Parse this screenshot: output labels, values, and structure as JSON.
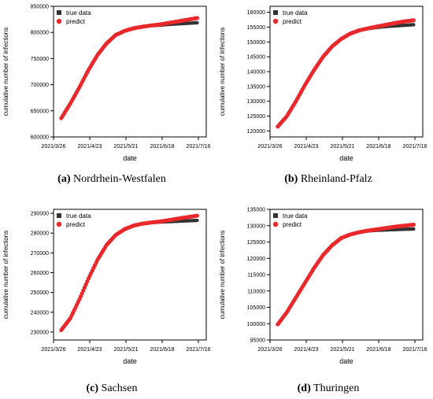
{
  "chart_data": [
    {
      "type": "scatter",
      "caption_letter": "(a)",
      "caption_name": "Nordrhein-Westfalen",
      "xlabel": "date",
      "ylabel": "cumulative number of infections",
      "x_tick_labels": [
        "2021/3/26",
        "2021/4/23",
        "2021/5/21",
        "2021/6/18",
        "2021/7/16"
      ],
      "y_tick_labels": [
        "600000",
        "650000",
        "700000",
        "750000",
        "800000",
        "850000"
      ],
      "ylim": [
        600000,
        850000
      ],
      "legend": [
        "true data",
        "predict"
      ],
      "legend_position": "top-left",
      "series": [
        {
          "name": "true data",
          "color": "#333333",
          "x": [
            "2021/4/1",
            "2021/4/8",
            "2021/4/15",
            "2021/4/22",
            "2021/4/29",
            "2021/5/6",
            "2021/5/13",
            "2021/5/20",
            "2021/5/27",
            "2021/6/3",
            "2021/6/10",
            "2021/6/17",
            "2021/6/24",
            "2021/7/1",
            "2021/7/8",
            "2021/7/15"
          ],
          "values": [
            636000,
            664000,
            695000,
            728000,
            757000,
            779000,
            795000,
            803000,
            808000,
            811000,
            813000,
            814000,
            815500,
            816500,
            817500,
            818500
          ]
        },
        {
          "name": "predict",
          "color": "#e8282b",
          "x": [
            "2021/4/1",
            "2021/4/8",
            "2021/4/15",
            "2021/4/22",
            "2021/4/29",
            "2021/5/6",
            "2021/5/13",
            "2021/5/20",
            "2021/5/27",
            "2021/6/3",
            "2021/6/10",
            "2021/6/17",
            "2021/6/24",
            "2021/7/1",
            "2021/7/8",
            "2021/7/15"
          ],
          "values": [
            636000,
            664000,
            695000,
            728000,
            757000,
            779000,
            795000,
            803000,
            808000,
            811000,
            813500,
            815500,
            818500,
            821500,
            824500,
            827500
          ]
        }
      ]
    },
    {
      "type": "scatter",
      "caption_letter": "(b)",
      "caption_name": "Rheinland-Pfalz",
      "xlabel": "date",
      "ylabel": "cumulative number of infections",
      "x_tick_labels": [
        "2021/3/26",
        "2021/4/23",
        "2021/5/21",
        "2021/6/18",
        "2021/7/16"
      ],
      "y_tick_labels": [
        "120000",
        "125000",
        "130000",
        "135000",
        "140000",
        "145000",
        "150000",
        "155000",
        "160000"
      ],
      "ylim": [
        118000,
        162000
      ],
      "legend": [
        "true data",
        "predict"
      ],
      "legend_position": "top-left",
      "series": [
        {
          "name": "true data",
          "color": "#333333",
          "x": [
            "2021/4/1",
            "2021/4/8",
            "2021/4/15",
            "2021/4/22",
            "2021/4/29",
            "2021/5/6",
            "2021/5/13",
            "2021/5/20",
            "2021/5/27",
            "2021/6/3",
            "2021/6/10",
            "2021/6/17",
            "2021/6/24",
            "2021/7/1",
            "2021/7/8",
            "2021/7/15"
          ],
          "values": [
            121500,
            125000,
            130000,
            135500,
            140500,
            145000,
            148500,
            151000,
            152800,
            153900,
            154500,
            154900,
            155200,
            155400,
            155600,
            155800
          ]
        },
        {
          "name": "predict",
          "color": "#e8282b",
          "x": [
            "2021/4/1",
            "2021/4/8",
            "2021/4/15",
            "2021/4/22",
            "2021/4/29",
            "2021/5/6",
            "2021/5/13",
            "2021/5/20",
            "2021/5/27",
            "2021/6/3",
            "2021/6/10",
            "2021/6/17",
            "2021/6/24",
            "2021/7/1",
            "2021/7/8",
            "2021/7/15"
          ],
          "values": [
            121500,
            125000,
            130000,
            135500,
            140500,
            145000,
            148500,
            151000,
            152800,
            153900,
            154600,
            155200,
            155800,
            156400,
            156900,
            157300
          ]
        }
      ]
    },
    {
      "type": "scatter",
      "caption_letter": "(c)",
      "caption_name": "Sachsen",
      "xlabel": "date",
      "ylabel": "cumulative number of infections",
      "x_tick_labels": [
        "2021/3/26",
        "2021/4/23",
        "2021/5/21",
        "2021/6/18",
        "2021/7/16"
      ],
      "y_tick_labels": [
        "230000",
        "240000",
        "250000",
        "260000",
        "270000",
        "280000",
        "290000"
      ],
      "ylim": [
        226000,
        292000
      ],
      "legend": [
        "true data",
        "predict"
      ],
      "legend_position": "top-left",
      "series": [
        {
          "name": "true data",
          "color": "#333333",
          "x": [
            "2021/4/1",
            "2021/4/8",
            "2021/4/15",
            "2021/4/22",
            "2021/4/29",
            "2021/5/6",
            "2021/5/13",
            "2021/5/20",
            "2021/5/27",
            "2021/6/3",
            "2021/6/10",
            "2021/6/17",
            "2021/6/24",
            "2021/7/1",
            "2021/7/8",
            "2021/7/15"
          ],
          "values": [
            231000,
            237000,
            246500,
            257000,
            266500,
            274000,
            279000,
            282000,
            283800,
            284800,
            285300,
            285600,
            285800,
            286000,
            286200,
            286400
          ]
        },
        {
          "name": "predict",
          "color": "#e8282b",
          "x": [
            "2021/4/1",
            "2021/4/8",
            "2021/4/15",
            "2021/4/22",
            "2021/4/29",
            "2021/5/6",
            "2021/5/13",
            "2021/5/20",
            "2021/5/27",
            "2021/6/3",
            "2021/6/10",
            "2021/6/17",
            "2021/6/24",
            "2021/7/1",
            "2021/7/8",
            "2021/7/15"
          ],
          "values": [
            231000,
            237000,
            246500,
            257000,
            266500,
            274000,
            279000,
            282000,
            283800,
            284800,
            285400,
            285900,
            286600,
            287400,
            288100,
            288800
          ]
        }
      ]
    },
    {
      "type": "scatter",
      "caption_letter": "(d)",
      "caption_name": "Thuringen",
      "xlabel": "date",
      "ylabel": "cumulative number of infections",
      "x_tick_labels": [
        "2021/3/26",
        "2021/4/23",
        "2021/5/21",
        "2021/6/18",
        "2021/7/16"
      ],
      "y_tick_labels": [
        "95000",
        "100000",
        "105000",
        "110000",
        "115000",
        "120000",
        "125000",
        "130000",
        "135000"
      ],
      "ylim": [
        95000,
        135000
      ],
      "legend": [
        "true data",
        "predict"
      ],
      "legend_position": "top-left",
      "series": [
        {
          "name": "true data",
          "color": "#333333",
          "x": [
            "2021/4/1",
            "2021/4/8",
            "2021/4/15",
            "2021/4/22",
            "2021/4/29",
            "2021/5/6",
            "2021/5/13",
            "2021/5/20",
            "2021/5/27",
            "2021/6/3",
            "2021/6/10",
            "2021/6/17",
            "2021/6/24",
            "2021/7/1",
            "2021/7/8",
            "2021/7/15"
          ],
          "values": [
            99800,
            103500,
            108000,
            112500,
            117000,
            121000,
            124000,
            126200,
            127300,
            128000,
            128400,
            128600,
            128700,
            128800,
            128900,
            129000
          ]
        },
        {
          "name": "predict",
          "color": "#e8282b",
          "x": [
            "2021/4/1",
            "2021/4/8",
            "2021/4/15",
            "2021/4/22",
            "2021/4/29",
            "2021/5/6",
            "2021/5/13",
            "2021/5/20",
            "2021/5/27",
            "2021/6/3",
            "2021/6/10",
            "2021/6/17",
            "2021/6/24",
            "2021/7/1",
            "2021/7/8",
            "2021/7/15"
          ],
          "values": [
            99800,
            103500,
            108000,
            112500,
            117000,
            121000,
            124000,
            126200,
            127300,
            128000,
            128500,
            128900,
            129300,
            129700,
            130000,
            130300
          ]
        }
      ]
    }
  ]
}
